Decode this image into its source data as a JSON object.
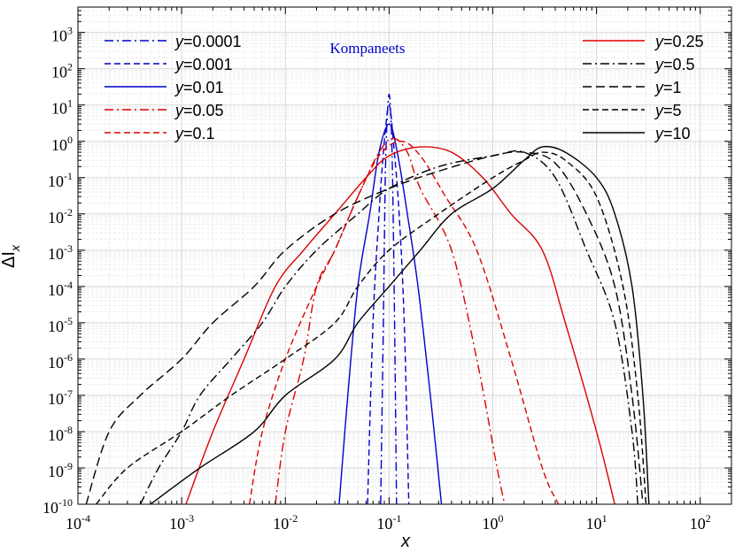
{
  "chart_data": {
    "type": "line",
    "x_scale": "log",
    "y_scale": "log",
    "xlim": [
      0.0001,
      200
    ],
    "ylim": [
      1e-10,
      5000
    ],
    "grid": true,
    "xlabel": "x",
    "ylabel": "ΔI",
    "ylabel_sub": "x",
    "annotation": {
      "text": "Kompaneets",
      "color": "#0000cc"
    },
    "x_tick_labels": [
      {
        "base": "10",
        "exp": "-4"
      },
      {
        "base": "10",
        "exp": "-3"
      },
      {
        "base": "10",
        "exp": "-2"
      },
      {
        "base": "10",
        "exp": "-1"
      },
      {
        "base": "10",
        "exp": "0"
      },
      {
        "base": "10",
        "exp": "1"
      },
      {
        "base": "10",
        "exp": "2"
      }
    ],
    "y_tick_labels": [
      {
        "base": "10",
        "exp": "-10"
      },
      {
        "base": "10",
        "exp": "-9"
      },
      {
        "base": "10",
        "exp": "-8"
      },
      {
        "base": "10",
        "exp": "-7"
      },
      {
        "base": "10",
        "exp": "-6"
      },
      {
        "base": "10",
        "exp": "-5"
      },
      {
        "base": "10",
        "exp": "-4"
      },
      {
        "base": "10",
        "exp": "-3"
      },
      {
        "base": "10",
        "exp": "-2"
      },
      {
        "base": "10",
        "exp": "-1"
      },
      {
        "base": "10",
        "exp": "0"
      },
      {
        "base": "10",
        "exp": "1"
      },
      {
        "base": "10",
        "exp": "2"
      },
      {
        "base": "10",
        "exp": "3"
      }
    ],
    "legend_left": [
      {
        "label": "y",
        "value": "=0.0001",
        "color": "#0000cc",
        "dash": "dashdot"
      },
      {
        "label": "y",
        "value": "=0.001",
        "color": "#0000cc",
        "dash": "dash"
      },
      {
        "label": "y",
        "value": "=0.01",
        "color": "#0000cc",
        "dash": "solid"
      },
      {
        "label": "y",
        "value": "=0.05",
        "color": "#dd0000",
        "dash": "dashdot"
      },
      {
        "label": "y",
        "value": "=0.1",
        "color": "#dd0000",
        "dash": "dash"
      }
    ],
    "legend_right": [
      {
        "label": "y",
        "value": "=0.25",
        "color": "#dd0000",
        "dash": "solid"
      },
      {
        "label": "y",
        "value": "=0.5",
        "color": "#000000",
        "dash": "dashdot"
      },
      {
        "label": "y",
        "value": "=1",
        "color": "#000000",
        "dash": "longdash"
      },
      {
        "label": "y",
        "value": "=5",
        "color": "#000000",
        "dash": "dash"
      },
      {
        "label": "y",
        "value": "=10",
        "color": "#000000",
        "dash": "solid"
      }
    ],
    "series": [
      {
        "name": "y=0.0001",
        "color": "#0000cc",
        "dash": "dashdot",
        "points": [
          [
            0.083,
            1e-10
          ],
          [
            0.088,
            1e-05
          ],
          [
            0.092,
            0.1
          ],
          [
            0.096,
            5
          ],
          [
            0.1,
            20
          ],
          [
            0.104,
            5
          ],
          [
            0.108,
            0.1
          ],
          [
            0.113,
            1e-05
          ],
          [
            0.118,
            1e-10
          ]
        ]
      },
      {
        "name": "y=0.001",
        "color": "#0000cc",
        "dash": "dash",
        "points": [
          [
            0.062,
            1e-10
          ],
          [
            0.07,
            1e-05
          ],
          [
            0.08,
            0.01
          ],
          [
            0.09,
            1
          ],
          [
            0.1,
            10
          ],
          [
            0.11,
            1
          ],
          [
            0.125,
            0.01
          ],
          [
            0.14,
            1e-05
          ],
          [
            0.155,
            1e-10
          ]
        ]
      },
      {
        "name": "y=0.01",
        "color": "#0000cc",
        "dash": "solid",
        "points": [
          [
            0.033,
            1e-10
          ],
          [
            0.04,
            1e-07
          ],
          [
            0.05,
            0.0001
          ],
          [
            0.065,
            0.01
          ],
          [
            0.08,
            0.5
          ],
          [
            0.1,
            3
          ],
          [
            0.12,
            0.5
          ],
          [
            0.15,
            0.01
          ],
          [
            0.19,
            0.0001
          ],
          [
            0.25,
            1e-07
          ],
          [
            0.32,
            1e-10
          ]
        ]
      },
      {
        "name": "y=0.05",
        "color": "#dd0000",
        "dash": "dashdot",
        "points": [
          [
            0.008,
            1e-10
          ],
          [
            0.01,
            1e-08
          ],
          [
            0.015,
            1e-06
          ],
          [
            0.02,
            0.0001
          ],
          [
            0.03,
            0.001
          ],
          [
            0.05,
            0.03
          ],
          [
            0.08,
            0.5
          ],
          [
            0.11,
            1.2
          ],
          [
            0.15,
            0.5
          ],
          [
            0.2,
            0.05
          ],
          [
            0.4,
            0.001
          ],
          [
            0.7,
            1e-06
          ],
          [
            1.1,
            1e-09
          ],
          [
            1.3,
            1e-10
          ]
        ]
      },
      {
        "name": "y=0.1",
        "color": "#dd0000",
        "dash": "dash",
        "points": [
          [
            0.0045,
            1e-10
          ],
          [
            0.006,
            1e-08
          ],
          [
            0.01,
            1e-06
          ],
          [
            0.02,
            0.0001
          ],
          [
            0.03,
            0.001
          ],
          [
            0.05,
            0.03
          ],
          [
            0.08,
            0.4
          ],
          [
            0.13,
            1
          ],
          [
            0.2,
            0.4
          ],
          [
            0.35,
            0.03
          ],
          [
            0.7,
            0.001
          ],
          [
            1.5,
            1e-06
          ],
          [
            3,
            1e-09
          ],
          [
            4.3,
            1e-10
          ]
        ]
      },
      {
        "name": "y=0.25",
        "color": "#dd0000",
        "dash": "solid",
        "points": [
          [
            0.0011,
            1e-10
          ],
          [
            0.002,
            1e-08
          ],
          [
            0.004,
            1e-06
          ],
          [
            0.008,
            0.0001
          ],
          [
            0.015,
            0.001
          ],
          [
            0.03,
            0.01
          ],
          [
            0.06,
            0.1
          ],
          [
            0.1,
            0.4
          ],
          [
            0.2,
            0.7
          ],
          [
            0.4,
            0.5
          ],
          [
            0.8,
            0.1
          ],
          [
            1.5,
            0.01
          ],
          [
            3,
            0.001
          ],
          [
            5,
            1e-05
          ],
          [
            10,
            1e-08
          ],
          [
            15,
            1e-10
          ]
        ]
      },
      {
        "name": "y=0.5",
        "color": "#000000",
        "dash": "dashdot",
        "points": [
          [
            0.0004,
            1e-10
          ],
          [
            0.0006,
            1e-09
          ],
          [
            0.001,
            1e-08
          ],
          [
            0.0015,
            1e-07
          ],
          [
            0.003,
            1e-06
          ],
          [
            0.006,
            1e-05
          ],
          [
            0.01,
            0.0001
          ],
          [
            0.02,
            0.001
          ],
          [
            0.05,
            0.01
          ],
          [
            0.1,
            0.05
          ],
          [
            0.3,
            0.2
          ],
          [
            1,
            0.4
          ],
          [
            2,
            0.5
          ],
          [
            4,
            0.1
          ],
          [
            8,
            0.001
          ],
          [
            15,
            1e-05
          ],
          [
            22,
            1e-08
          ],
          [
            25,
            1e-10
          ]
        ]
      },
      {
        "name": "y=1",
        "color": "#000000",
        "dash": "longdash",
        "points": [
          [
            0.00012,
            1e-10
          ],
          [
            0.0002,
            1e-08
          ],
          [
            0.0004,
            1e-07
          ],
          [
            0.001,
            1e-06
          ],
          [
            0.002,
            1e-05
          ],
          [
            0.005,
            0.0001
          ],
          [
            0.01,
            0.001
          ],
          [
            0.03,
            0.01
          ],
          [
            0.1,
            0.05
          ],
          [
            0.3,
            0.15
          ],
          [
            1,
            0.4
          ],
          [
            2,
            0.5
          ],
          [
            4,
            0.25
          ],
          [
            8,
            0.01
          ],
          [
            15,
            0.0001
          ],
          [
            22,
            1e-07
          ],
          [
            28,
            1e-10
          ]
        ]
      },
      {
        "name": "y=5",
        "color": "#000000",
        "dash": "dash",
        "points": [
          [
            0.00015,
            1e-10
          ],
          [
            0.0003,
            1e-09
          ],
          [
            0.001,
            1e-08
          ],
          [
            0.003,
            1e-07
          ],
          [
            0.01,
            1e-06
          ],
          [
            0.03,
            1e-05
          ],
          [
            0.05,
            0.0001
          ],
          [
            0.1,
            0.001
          ],
          [
            0.3,
            0.01
          ],
          [
            1,
            0.1
          ],
          [
            2,
            0.3
          ],
          [
            3,
            0.5
          ],
          [
            5,
            0.3
          ],
          [
            10,
            0.03
          ],
          [
            18,
            0.0001
          ],
          [
            25,
            1e-07
          ],
          [
            30,
            1e-10
          ]
        ]
      },
      {
        "name": "y=10",
        "color": "#000000",
        "dash": "solid",
        "points": [
          [
            0.0005,
            1e-10
          ],
          [
            0.0015,
            1e-09
          ],
          [
            0.005,
            1e-08
          ],
          [
            0.01,
            1e-07
          ],
          [
            0.03,
            1e-06
          ],
          [
            0.05,
            1e-05
          ],
          [
            0.1,
            0.0001
          ],
          [
            0.2,
            0.001
          ],
          [
            0.4,
            0.01
          ],
          [
            1,
            0.05
          ],
          [
            2,
            0.3
          ],
          [
            3,
            0.7
          ],
          [
            5,
            0.5
          ],
          [
            10,
            0.1
          ],
          [
            15,
            0.01
          ],
          [
            22,
            0.0001
          ],
          [
            28,
            1e-07
          ],
          [
            32,
            1e-10
          ]
        ]
      }
    ]
  }
}
